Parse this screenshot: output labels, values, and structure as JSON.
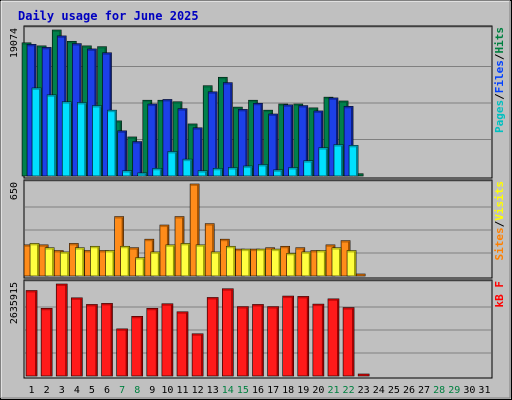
{
  "chart_data": {
    "type": "bar",
    "title": "Daily usage for June 2025",
    "days": [
      "1",
      "2",
      "3",
      "4",
      "5",
      "6",
      "7",
      "8",
      "9",
      "10",
      "11",
      "12",
      "13",
      "14",
      "15",
      "16",
      "17",
      "18",
      "19",
      "20",
      "21",
      "22",
      "23",
      "24",
      "25",
      "26",
      "27",
      "28",
      "29",
      "30",
      "31"
    ],
    "weekend_days": [
      "7",
      "8",
      "14",
      "15",
      "21",
      "22",
      "28",
      "29"
    ],
    "panels": [
      {
        "id": "hits-files-pages",
        "max_label": "19074",
        "ymax": 19074,
        "legend": [
          {
            "label": "Pages",
            "color": "#00c0c0"
          },
          {
            "sep": "/"
          },
          {
            "label": "Files",
            "color": "#0040ff"
          },
          {
            "sep": "/"
          },
          {
            "label": "Hits",
            "color": "#008040"
          }
        ],
        "series": [
          {
            "color": "#00804c",
            "shade": "#005a34",
            "values": [
              17400,
              17000,
              19074,
              17600,
              17000,
              16900,
              7200,
              5100,
              9900,
              9900,
              9700,
              6800,
              11800,
              12900,
              9000,
              9900,
              8600,
              9400,
              9400,
              8900,
              10300,
              9800,
              300,
              0,
              0,
              0,
              0,
              0,
              0,
              0,
              0
            ]
          },
          {
            "color": "#1c40e8",
            "shade": "#0a1e80",
            "values": [
              17200,
              16800,
              18300,
              17300,
              16600,
              16100,
              5900,
              4500,
              9400,
              10000,
              8800,
              6300,
              11000,
              12200,
              8700,
              9500,
              8100,
              9300,
              9200,
              8500,
              10200,
              9100,
              0,
              0,
              0,
              0,
              0,
              0,
              0,
              0,
              0
            ]
          },
          {
            "color": "#00e0ff",
            "shade": "#007a8c",
            "values": [
              11500,
              10600,
              9700,
              9600,
              9200,
              8600,
              700,
              400,
              1000,
              3200,
              2200,
              700,
              1000,
              1100,
              1300,
              1500,
              800,
              1100,
              2000,
              3700,
              4100,
              4000,
              0,
              0,
              0,
              0,
              0,
              0,
              0,
              0,
              0
            ]
          }
        ]
      },
      {
        "id": "visits-sites",
        "max_label": "650",
        "ymax": 650,
        "legend": [
          {
            "label": "Sites",
            "color": "#ff8000"
          },
          {
            "sep": "/"
          },
          {
            "label": "Visits",
            "color": "#ffff00"
          }
        ],
        "series": [
          {
            "color": "#ff8c1a",
            "shade": "#a05000",
            "values": [
              220,
              220,
              180,
              230,
              180,
              180,
              420,
              200,
              260,
              360,
              420,
              650,
              370,
              260,
              190,
              190,
              200,
              210,
              200,
              180,
              220,
              250,
              10,
              0,
              0,
              0,
              0,
              0,
              0,
              0,
              0
            ]
          },
          {
            "color": "#ffff40",
            "shade": "#9a9a00",
            "values": [
              230,
              200,
              170,
              200,
              210,
              180,
              210,
              130,
              170,
              220,
              230,
              220,
              170,
              210,
              190,
              190,
              190,
              160,
              170,
              180,
              200,
              180,
              0,
              0,
              0,
              0,
              0,
              0,
              0,
              0,
              0
            ]
          }
        ]
      },
      {
        "id": "kbytes",
        "max_label": "2635915",
        "ymax": 2635915,
        "legend": [
          {
            "label": "kB F",
            "color": "#ff0000"
          }
        ],
        "series": [
          {
            "color": "#ff1a1a",
            "shade": "#a00000",
            "values": [
              2450000,
              1940000,
              2635915,
              2240000,
              2050000,
              2080000,
              1350000,
              1710000,
              1940000,
              2070000,
              1840000,
              1210000,
              2250000,
              2500000,
              1990000,
              2050000,
              1990000,
              2290000,
              2280000,
              2060000,
              2210000,
              1960000,
              40000,
              0,
              0,
              0,
              0,
              0,
              0,
              0,
              0
            ]
          }
        ]
      }
    ]
  }
}
